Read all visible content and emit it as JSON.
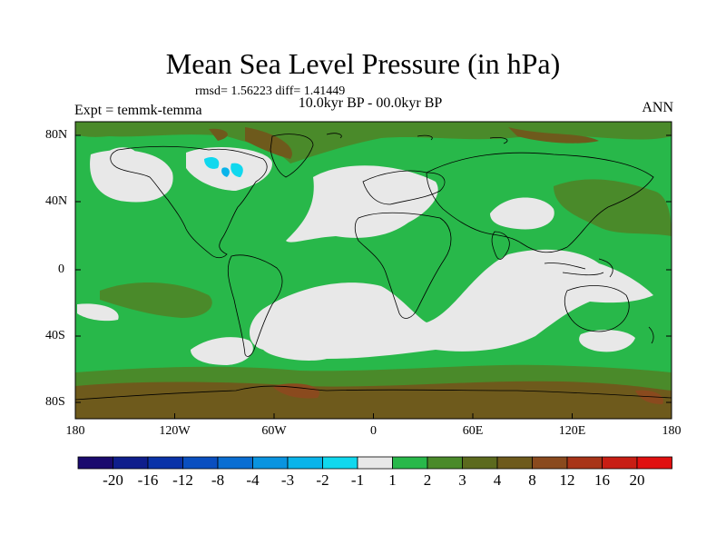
{
  "title": "Mean Sea Level Pressure (in hPa)",
  "stats": "rmsd= 1.56223 diff= 1.41449",
  "subtitle": "10.0kyr BP - 00.0kyr BP",
  "expt": "Expt = temmk-temma",
  "season": "ANN",
  "lat_labels": [
    "80N",
    "40N",
    "0",
    "40S",
    "80S"
  ],
  "lon_labels": [
    "180",
    "120W",
    "60W",
    "0",
    "60E",
    "120E",
    "180"
  ],
  "colorbar": {
    "labels": [
      "-20",
      "-16",
      "-12",
      "-8",
      "-4",
      "-3",
      "-2",
      "-1",
      "1",
      "2",
      "3",
      "4",
      "8",
      "12",
      "16",
      "20"
    ],
    "colors": [
      "#1a0a6e",
      "#0f1e8c",
      "#0a33a8",
      "#0a4fc0",
      "#0a6ed2",
      "#0a94e0",
      "#0ab4ea",
      "#11d8ee",
      "#e8e8e8",
      "#28b84a",
      "#4a8a2a",
      "#5c6a1e",
      "#6e5a1c",
      "#8a4a1e",
      "#a83418",
      "#c81e14",
      "#e01010"
    ]
  },
  "map_colors": {
    "white": "#e8e8e8",
    "green": "#28b84a",
    "olive": "#4a8a2a",
    "brown": "#6e5a1c",
    "cyan": "#11d8ee"
  }
}
